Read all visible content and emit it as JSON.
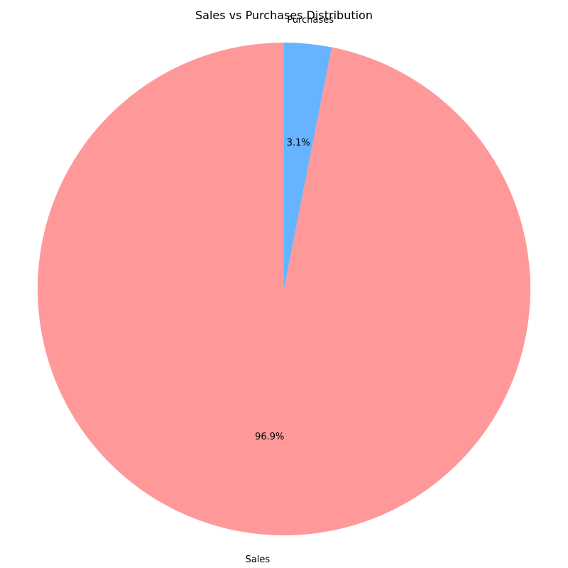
{
  "chart_data": {
    "type": "pie",
    "title": "Sales vs Purchases Distribution",
    "slices": [
      {
        "label": "Sales",
        "value": 96.9,
        "pct_label": "96.9%",
        "color": "#ff9999"
      },
      {
        "label": "Purchases",
        "value": 3.1,
        "pct_label": "3.1%",
        "color": "#66b3ff"
      }
    ],
    "start_angle_deg": 90,
    "direction": "counterclockwise"
  }
}
